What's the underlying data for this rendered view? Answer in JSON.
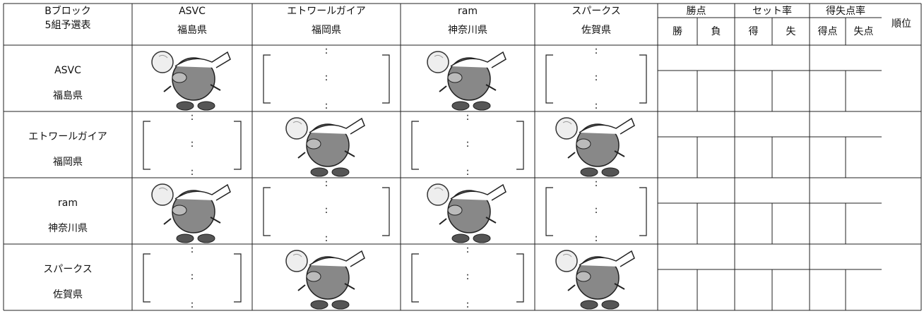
{
  "header": {
    "title_line1": "Bブロック",
    "title_line2": "5組予選表",
    "teams": [
      {
        "name": "ASVC",
        "prefecture": "福島県"
      },
      {
        "name": "エトワールガイア",
        "prefecture": "福岡県"
      },
      {
        "name": "ram",
        "prefecture": "神奈川県"
      },
      {
        "name": "スパークス",
        "prefecture": "佐賀県"
      }
    ],
    "stats": [
      {
        "label": "勝点",
        "sub": [
          "勝",
          "負"
        ]
      },
      {
        "label": "セット率",
        "sub": [
          "得",
          "失"
        ]
      },
      {
        "label": "得失点率",
        "sub": [
          "得点",
          "失点"
        ]
      }
    ],
    "rank": "順位"
  },
  "rows": [
    {
      "name": "ASVC",
      "prefecture": "福島県"
    },
    {
      "name": "エトワールガイア",
      "prefecture": "福岡県"
    },
    {
      "name": "ram",
      "prefecture": "神奈川県"
    },
    {
      "name": "スパークス",
      "prefecture": "佐賀県"
    }
  ],
  "score_separator": ":"
}
